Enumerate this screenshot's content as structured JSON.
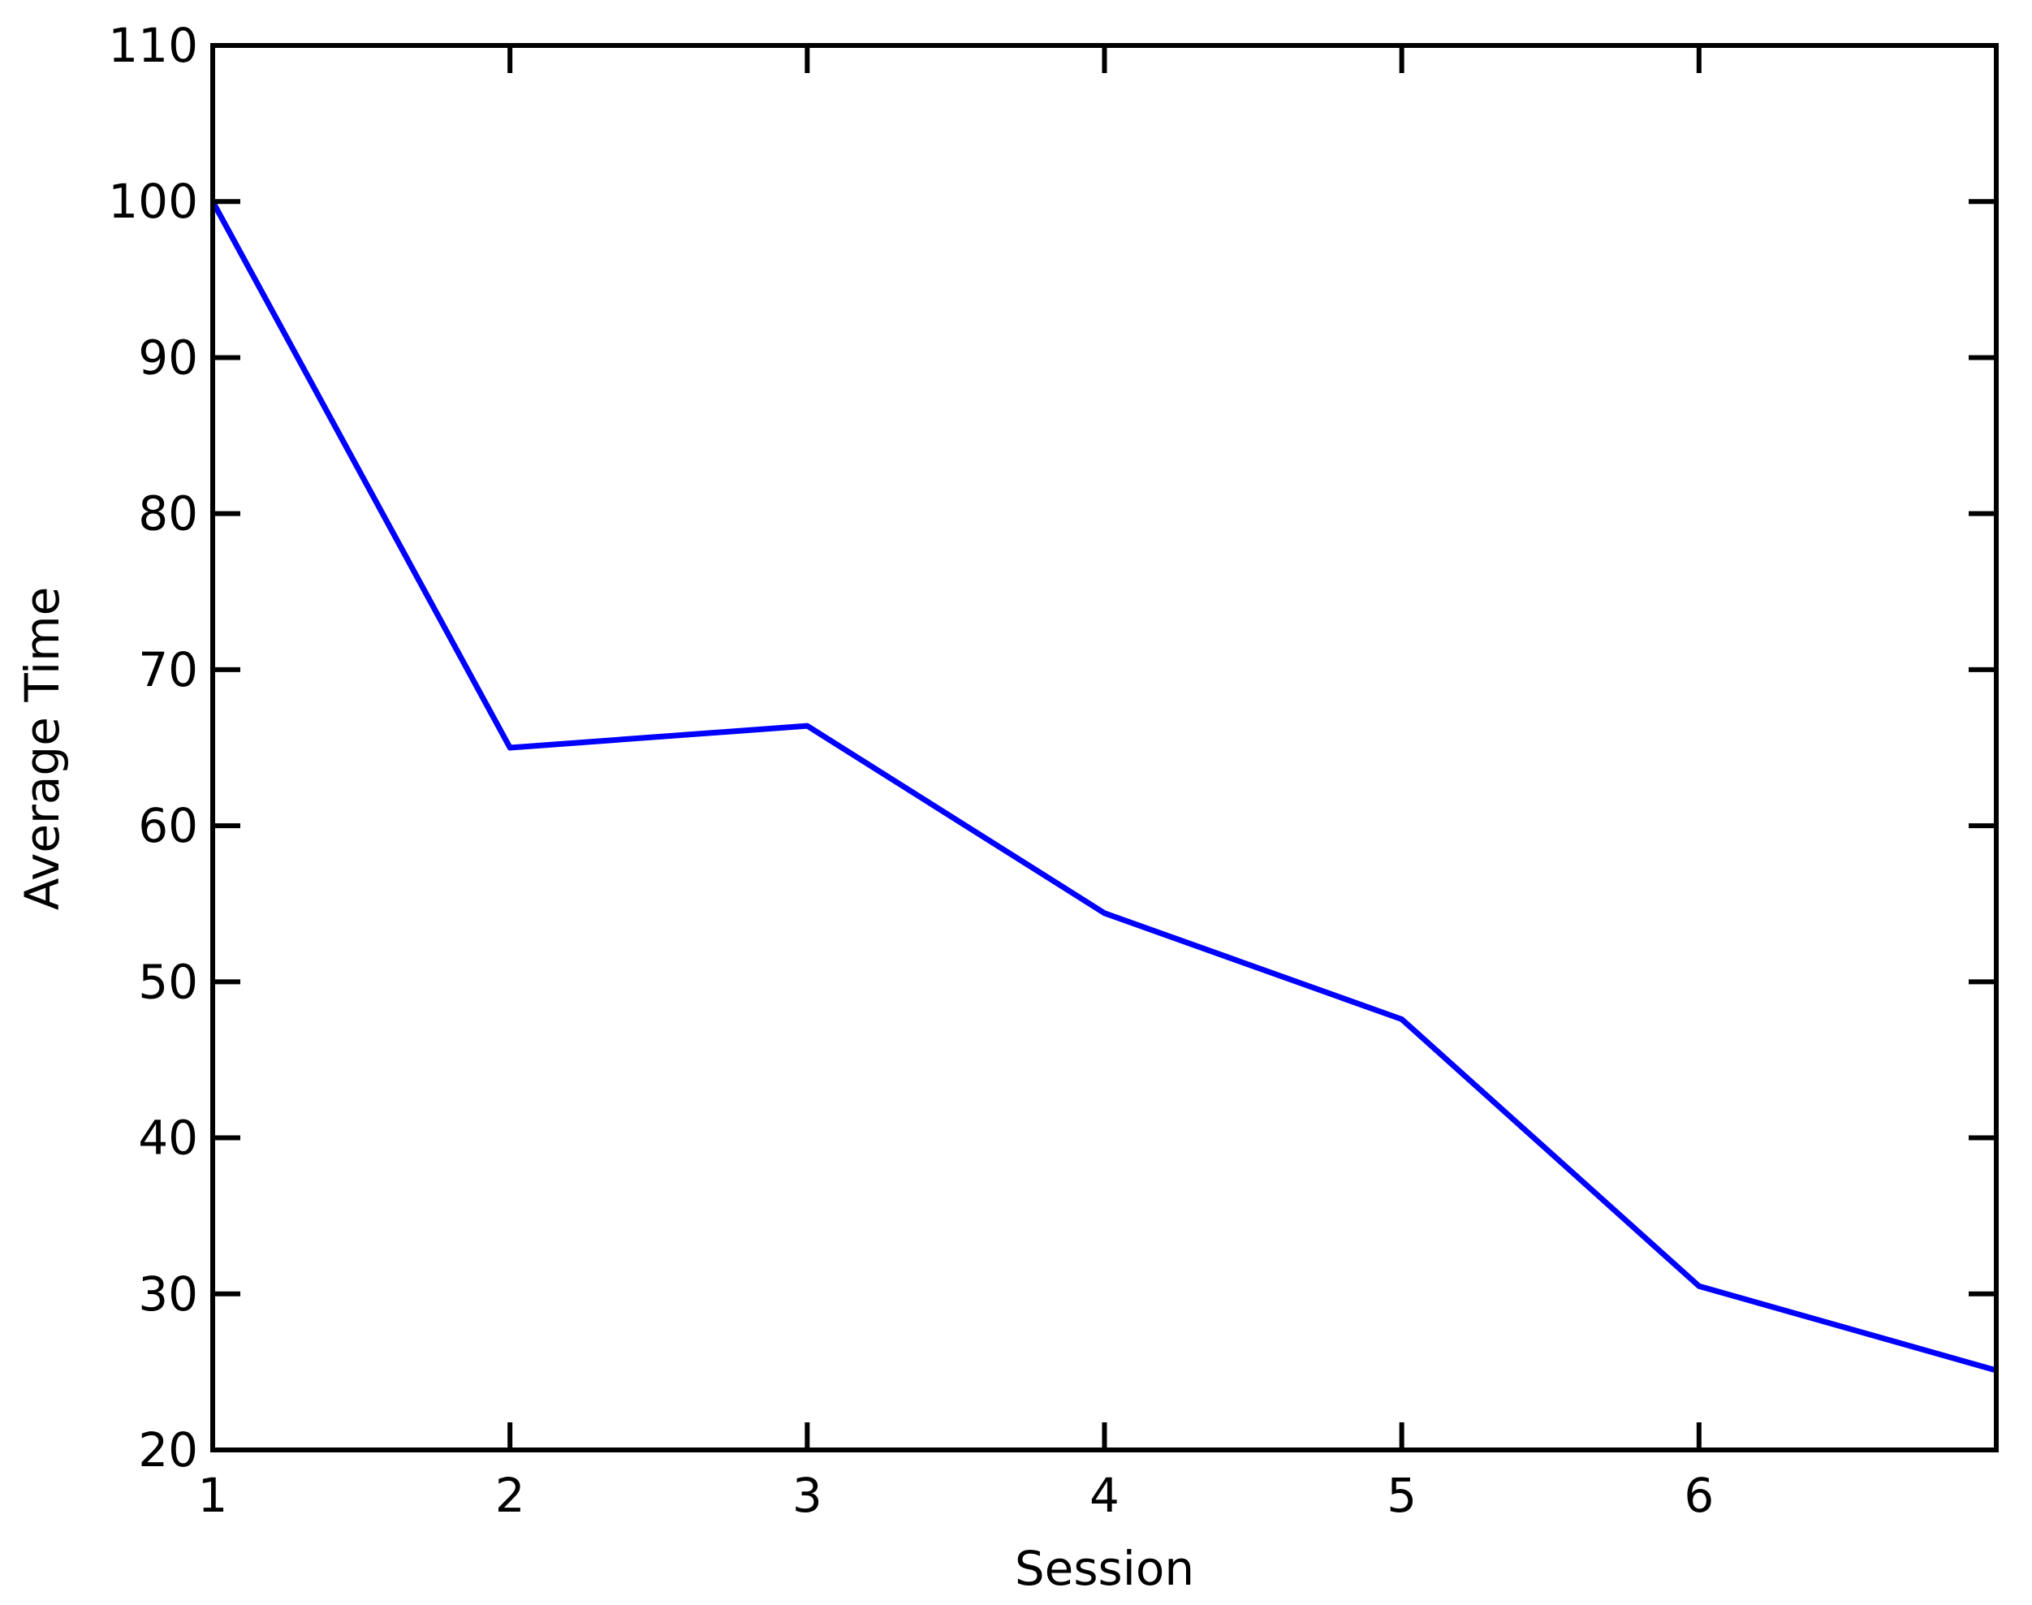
{
  "chart_data": {
    "type": "line",
    "title": "",
    "xlabel": "Session",
    "ylabel": "Average Time",
    "x_ticks": [
      "1",
      "2",
      "3",
      "4",
      "5",
      "6"
    ],
    "y_ticks": [
      "20",
      "30",
      "40",
      "50",
      "60",
      "70",
      "80",
      "90",
      "100",
      "110"
    ],
    "xlim": [
      1,
      7
    ],
    "ylim": [
      20,
      110
    ],
    "grid": false,
    "legend": "none",
    "series": [
      {
        "color": "#0000ff",
        "x": [
          1,
          2,
          3,
          4,
          5,
          6,
          7
        ],
        "y": [
          100,
          65,
          66.4,
          54.4,
          47.6,
          30.5,
          25.1
        ]
      }
    ]
  }
}
